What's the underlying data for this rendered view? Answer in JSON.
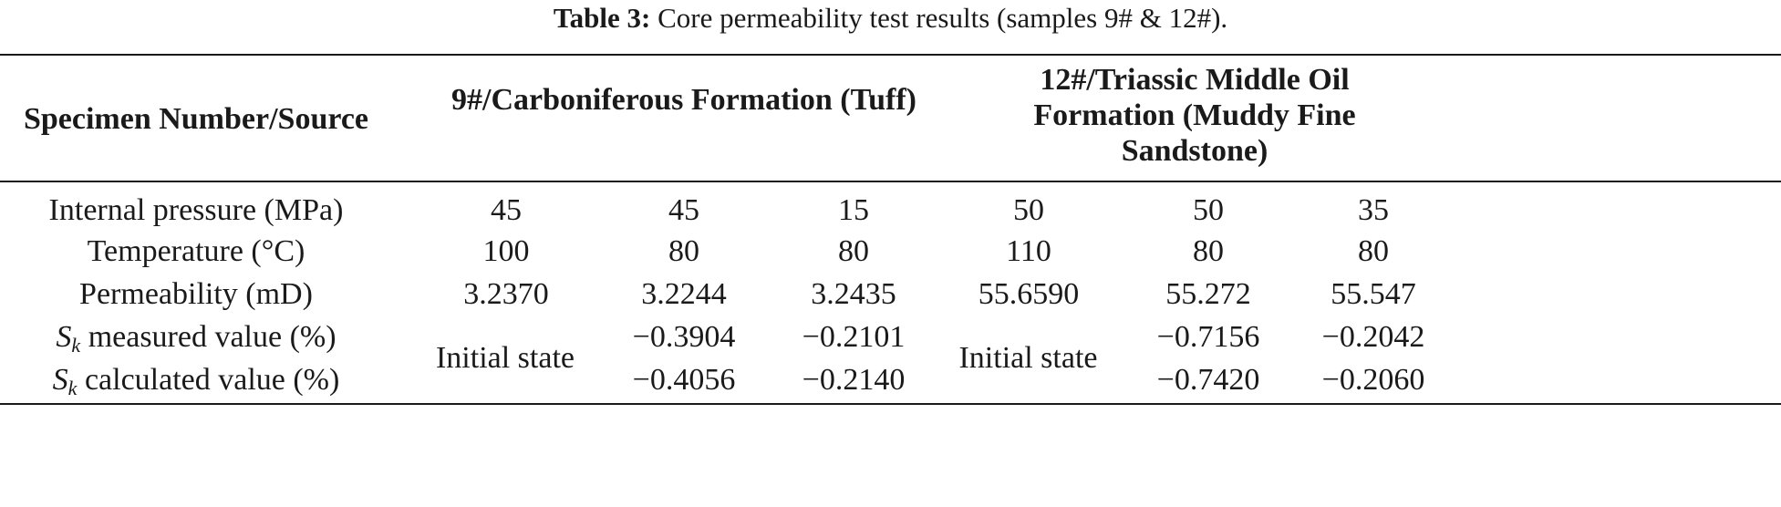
{
  "caption": {
    "label": "Table 3:",
    "text": "Core permeability test results (samples 9# & 12#)."
  },
  "table": {
    "header": {
      "col0": "Specimen Number/Source",
      "group1": "9#/Carboniferous Formation (Tuff)",
      "group2": "12#/Triassic Middle Oil Formation (Muddy Fine Sandstone)"
    },
    "rows": [
      {
        "label": "Internal pressure (MPa)",
        "values": [
          "45",
          "45",
          "15",
          "50",
          "50",
          "35"
        ]
      },
      {
        "label": "Temperature (°C)",
        "values": [
          "100",
          "80",
          "80",
          "110",
          "80",
          "80"
        ]
      },
      {
        "label": "Permeability (mD)",
        "values": [
          "3.2370",
          "3.2244",
          "3.2435",
          "55.6590",
          "55.272",
          "55.547"
        ]
      }
    ],
    "sk_rows": {
      "symbol": "S",
      "subscript": "k",
      "measured_label": "measured value (%)",
      "calculated_label": "calculated value (%)",
      "initial_state_1": "Initial state",
      "initial_state_2": "Initial state",
      "measured_values": [
        "−0.3904",
        "−0.2101",
        "−0.7156",
        "−0.2042"
      ],
      "calculated_values": [
        "−0.4056",
        "−0.2140",
        "−0.7420",
        "−0.2060"
      ]
    }
  }
}
